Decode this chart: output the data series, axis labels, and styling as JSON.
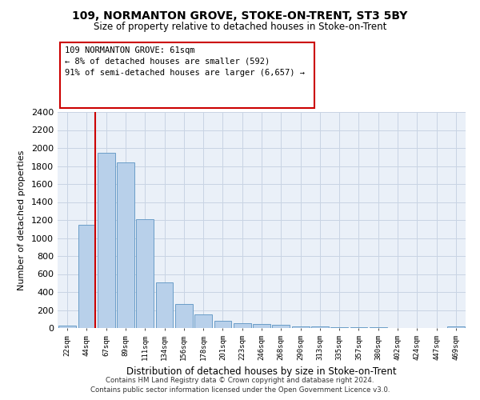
{
  "title": "109, NORMANTON GROVE, STOKE-ON-TRENT, ST3 5BY",
  "subtitle": "Size of property relative to detached houses in Stoke-on-Trent",
  "xlabel": "Distribution of detached houses by size in Stoke-on-Trent",
  "ylabel": "Number of detached properties",
  "bar_labels": [
    "22sqm",
    "44sqm",
    "67sqm",
    "89sqm",
    "111sqm",
    "134sqm",
    "156sqm",
    "178sqm",
    "201sqm",
    "223sqm",
    "246sqm",
    "268sqm",
    "290sqm",
    "313sqm",
    "335sqm",
    "357sqm",
    "380sqm",
    "402sqm",
    "424sqm",
    "447sqm",
    "469sqm"
  ],
  "bar_values": [
    30,
    1150,
    1950,
    1840,
    1210,
    510,
    265,
    155,
    80,
    50,
    45,
    38,
    20,
    15,
    10,
    5,
    5,
    3,
    3,
    2,
    18
  ],
  "bar_color": "#b8d0ea",
  "bar_edge_color": "#6a9dc8",
  "ylim": [
    0,
    2400
  ],
  "yticks": [
    0,
    200,
    400,
    600,
    800,
    1000,
    1200,
    1400,
    1600,
    1800,
    2000,
    2200,
    2400
  ],
  "vline_color": "#cc0000",
  "annotation_line1": "109 NORMANTON GROVE: 61sqm",
  "annotation_line2": "← 8% of detached houses are smaller (592)",
  "annotation_line3": "91% of semi-detached houses are larger (6,657) →",
  "annotation_box_color": "#ffffff",
  "annotation_box_edge": "#cc0000",
  "footer_text": "Contains HM Land Registry data © Crown copyright and database right 2024.\nContains public sector information licensed under the Open Government Licence v3.0.",
  "bg_color": "#ffffff",
  "grid_color": "#c8d4e4",
  "axis_bg_color": "#eaf0f8"
}
